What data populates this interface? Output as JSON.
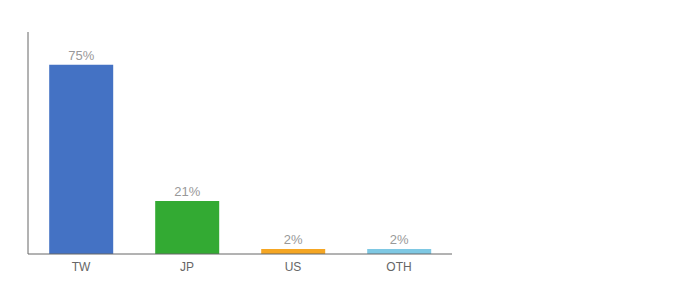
{
  "chart_data": {
    "type": "bar",
    "categories": [
      "TW",
      "JP",
      "US",
      "OTH"
    ],
    "values": [
      75,
      21,
      2,
      2
    ],
    "value_labels": [
      "75%",
      "21%",
      "2%",
      "2%"
    ],
    "data_labels": true,
    "colors": [
      "#4472c4",
      "#33aa33",
      "#f5a623",
      "#7ec8e3"
    ],
    "ylim": [
      0,
      88
    ],
    "tick_labels": "x",
    "grid": false
  }
}
